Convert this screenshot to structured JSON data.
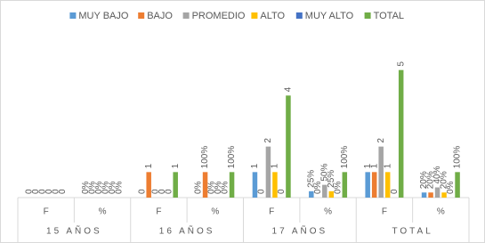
{
  "chart_data": {
    "type": "bar",
    "categories": [
      "F",
      "%",
      "F",
      "%",
      "F",
      "%",
      "F",
      "%"
    ],
    "groups": [
      "15 AÑOS",
      "16 AÑOS",
      "17 AÑOS",
      "TOTAL"
    ],
    "ylim": [
      0,
      6
    ],
    "legend": "top",
    "series": [
      {
        "name": "MUY BAJO",
        "color": "#5b9bd5",
        "values": [
          0,
          0,
          0,
          0,
          1,
          0.25,
          1,
          0.2
        ],
        "value_labels": [
          null,
          "0%",
          null,
          "0%",
          null,
          "25%",
          null,
          "20%"
        ]
      },
      {
        "name": "BAJO",
        "color": "#ed7d31",
        "values": [
          0,
          0,
          1,
          1,
          0,
          0,
          1,
          0.2
        ],
        "value_labels": [
          null,
          "0%",
          null,
          "100%",
          null,
          "0%",
          null,
          "20%"
        ]
      },
      {
        "name": "PROMEDIO",
        "color": "#a5a5a5",
        "values": [
          0,
          0,
          0,
          0,
          2,
          0.5,
          2,
          0.4
        ],
        "value_labels": [
          null,
          "0%",
          null,
          "0%",
          null,
          "50%",
          null,
          "40%"
        ]
      },
      {
        "name": "ALTO",
        "color": "#ffc000",
        "values": [
          0,
          0,
          0,
          0,
          1,
          0.25,
          1,
          0.2
        ],
        "value_labels": [
          null,
          "0%",
          null,
          "0%",
          null,
          "25%",
          null,
          "20%"
        ]
      },
      {
        "name": "MUY ALTO",
        "color": "#4472c4",
        "values": [
          0,
          0,
          0,
          0,
          0,
          0,
          0,
          0
        ],
        "value_labels": [
          null,
          "0%",
          null,
          "0%",
          null,
          "0%",
          null,
          "0%"
        ]
      },
      {
        "name": "TOTAL",
        "color": "#70ad47",
        "values": [
          0,
          0,
          1,
          1,
          4,
          1,
          5,
          1
        ],
        "value_labels": [
          null,
          "0%",
          null,
          "100%",
          null,
          "100%",
          null,
          "100%"
        ]
      }
    ]
  }
}
